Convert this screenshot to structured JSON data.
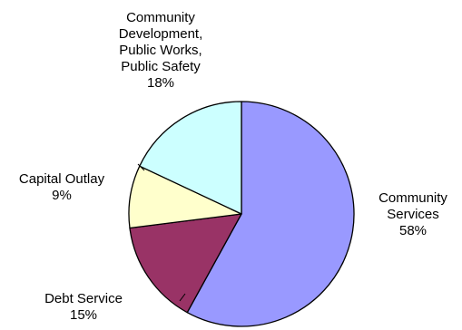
{
  "chart_data": {
    "type": "pie",
    "title": "",
    "slices": [
      {
        "name": "Community Services",
        "value": 58,
        "label_lines": [
          "Community",
          "Services"
        ],
        "percent_label": "58%",
        "color": "#9999ff"
      },
      {
        "name": "Debt Service",
        "value": 15,
        "label_lines": [
          "Debt Service"
        ],
        "percent_label": "15%",
        "color": "#993366"
      },
      {
        "name": "Capital Outlay",
        "value": 9,
        "label_lines": [
          "Capital Outlay"
        ],
        "percent_label": "9%",
        "color": "#ffffcc"
      },
      {
        "name": "Community Development, Public Works, Public Safety",
        "value": 18,
        "label_lines": [
          "Community",
          "Development,",
          "Public Works,",
          "Public Safety"
        ],
        "percent_label": "18%",
        "color": "#ccffff"
      }
    ],
    "start_angle": "12 o'clock",
    "direction": "clockwise",
    "legend": "none"
  }
}
